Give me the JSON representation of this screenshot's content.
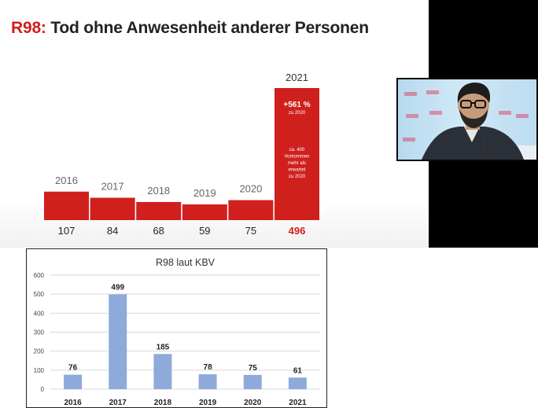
{
  "slide": {
    "title_code": "R98:",
    "title_text": " Tod ohne Anwesenheit anderer Personen"
  },
  "chart_data": [
    {
      "type": "bar",
      "title": "R98: Tod ohne Anwesenheit anderer Personen",
      "categories": [
        "2016",
        "2017",
        "2018",
        "2019",
        "2020",
        "2021"
      ],
      "values": [
        107,
        84,
        68,
        59,
        75,
        496
      ],
      "value_labels": [
        "107",
        "84",
        "68",
        "59",
        "75",
        "496"
      ],
      "annotations": {
        "change_pct": "+561 %",
        "change_ref": "zu 2020",
        "note_lines": [
          "ca. 400",
          "Vorkommen",
          "mehr als",
          "erwartet",
          "zu 2020"
        ]
      },
      "colors": {
        "bar": "#d0201e",
        "year_label": "#666666",
        "value_label": "#222222",
        "highlight_value": "#d0201e"
      },
      "grid": false,
      "legend": "none"
    },
    {
      "type": "bar",
      "title": "R98 laut KBV",
      "categories": [
        "2016",
        "2017",
        "2018",
        "2019",
        "2020",
        "2021"
      ],
      "values": [
        76,
        499,
        185,
        78,
        75,
        61
      ],
      "ylim": [
        0,
        600
      ],
      "yticks": [
        0,
        100,
        200,
        300,
        400,
        500,
        600
      ],
      "colors": {
        "bar": "#8eaadb"
      },
      "grid": true,
      "legend": "none"
    }
  ],
  "video": {
    "icon": "speaker-video-feed",
    "colors": {
      "backdrop": "#bcdcf0",
      "suit": "#2b2f38"
    }
  }
}
